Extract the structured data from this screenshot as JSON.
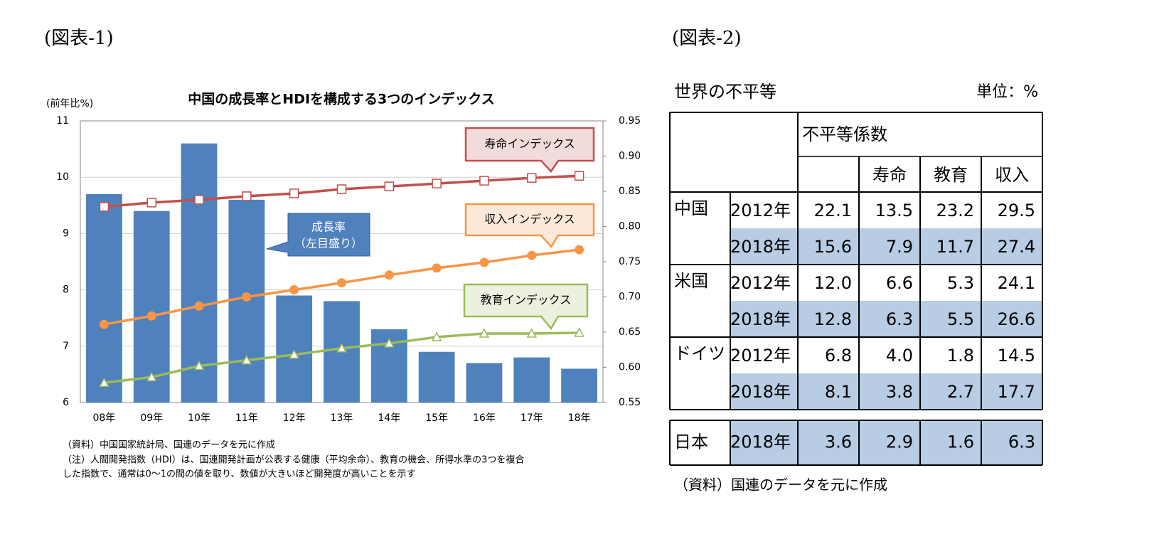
{
  "figure1_label": "(図表-1)",
  "figure2_label": "(図表-2)",
  "chart_data": {
    "type": "bar-line",
    "title": "中国の成長率とHDIを構成する3つのインデックス",
    "y_label": "(前年比%)",
    "left_axis_note": "（左目盛り）",
    "categories": [
      "08年",
      "09年",
      "10年",
      "11年",
      "12年",
      "13年",
      "14年",
      "15年",
      "16年",
      "17年",
      "18年"
    ],
    "ylim": [
      6,
      11
    ],
    "yticks": [
      6,
      7,
      8,
      9,
      10,
      11
    ],
    "y2lim": [
      0.55,
      0.95
    ],
    "y2ticks": [
      0.55,
      {
        "value": 0.6,
        "label": "0.60"
      },
      0.65,
      {
        "value": 0.7,
        "label": "0.70"
      },
      0.75,
      {
        "value": 0.8,
        "label": "0.80"
      },
      0.85,
      {
        "value": 0.9,
        "label": "0.90"
      },
      0.95
    ],
    "grid": true,
    "series": [
      {
        "name": "成長率",
        "type": "bar",
        "color": "#4f81bd",
        "values": [
          9.7,
          9.4,
          10.6,
          9.6,
          7.9,
          7.8,
          7.3,
          6.9,
          6.7,
          6.8,
          6.6
        ]
      },
      {
        "name": "寿命インデックス",
        "type": "line",
        "axis": "y2",
        "color": "#c0504d",
        "marker": "open-square",
        "values": [
          0.828,
          0.834,
          0.838,
          0.843,
          0.847,
          0.853,
          0.857,
          0.861,
          0.865,
          0.869,
          0.872
        ]
      },
      {
        "name": "収入インデックス",
        "type": "line",
        "axis": "y2",
        "color": "#f79646",
        "marker": "filled-circle",
        "values": [
          0.661,
          0.673,
          0.687,
          0.7,
          0.71,
          0.72,
          0.731,
          0.741,
          0.749,
          0.759,
          0.767
        ]
      },
      {
        "name": "教育インデックス",
        "type": "line",
        "axis": "y2",
        "color": "#9bbb59",
        "marker": "open-triangle",
        "values": [
          0.578,
          0.586,
          0.602,
          0.61,
          0.618,
          0.627,
          0.634,
          0.643,
          0.648,
          0.648,
          0.649
        ]
      }
    ],
    "notes": [
      "（資料）中国国家統計局、国連のデータを元に作成",
      "（注）人間開発指数（HDI）は、国連開発計画が公表する健康（平均余命）、教育の機会、所得水準の3つを複合",
      "した指数で、通常は0～1の間の値を取り、数値が大きいほど開発度が高いことを示す"
    ]
  },
  "table": {
    "title": "世界の不平等",
    "unit": "単位：%",
    "header": "不平等係数",
    "subheaders": [
      "寿命",
      "教育",
      "収入"
    ],
    "groups": [
      {
        "country": "中国",
        "rows": [
          [
            "2012年",
            "22.1",
            "13.5",
            "23.2",
            "29.5"
          ],
          [
            "2018年",
            "15.6",
            "7.9",
            "11.7",
            "27.4"
          ]
        ]
      },
      {
        "country": "米国",
        "rows": [
          [
            "2012年",
            "12.0",
            "6.6",
            "5.3",
            "24.1"
          ],
          [
            "2018年",
            "12.8",
            "6.3",
            "5.5",
            "26.6"
          ]
        ]
      },
      {
        "country": "ドイツ",
        "rows": [
          [
            "2012年",
            "6.8",
            "4.0",
            "1.8",
            "14.5"
          ],
          [
            "2018年",
            "8.1",
            "3.8",
            "2.7",
            "17.7"
          ]
        ]
      }
    ],
    "japan": {
      "country": "日本",
      "rows": [
        [
          "2018年",
          "3.6",
          "2.9",
          "1.6",
          "6.3"
        ]
      ]
    },
    "source": "（資料）国連のデータを元に作成"
  }
}
